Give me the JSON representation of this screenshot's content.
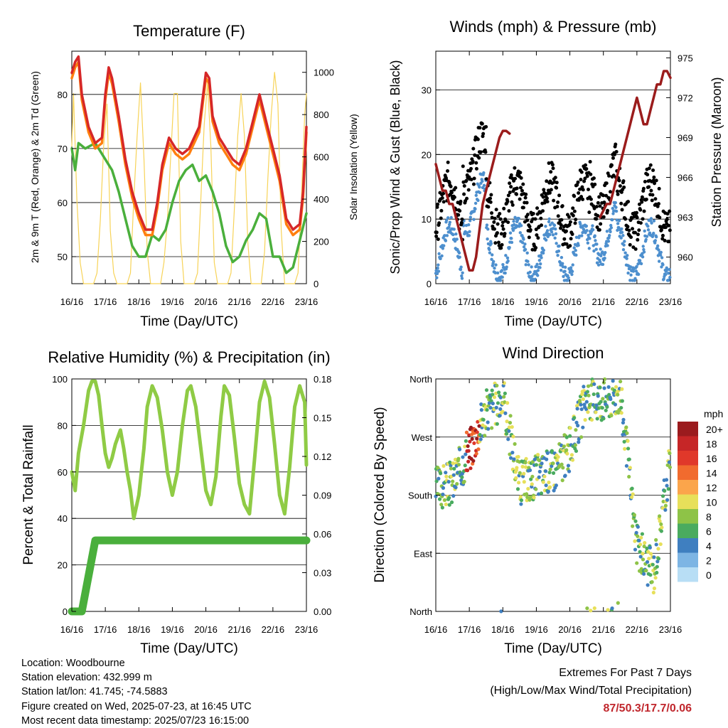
{
  "x_ticks": [
    "16/16",
    "17/16",
    "18/16",
    "19/16",
    "20/16",
    "21/16",
    "22/16",
    "23/16"
  ],
  "info": {
    "location": "Location: Woodbourne",
    "elevation": "Station elevation: 432.999 m",
    "latlon": "Station lat/lon: 41.745; -74.5883",
    "created": "Figure created on Wed, 2025-07-23, at 16:45 UTC",
    "recent": "Most recent data timestamp: 2025/07/23 16:15:00"
  },
  "extremes": {
    "title": "Extremes For Past 7 Days",
    "subtitle": "(High/Low/Max Wind/Total Precipitation)",
    "value": "87/50.3/17.7/0.06",
    "color": "#c0272d"
  },
  "chart_data": [
    {
      "type": "line",
      "title": "Temperature (F)",
      "xlabel": "Time (Day/UTC)",
      "ylabel": "2m & 9m T (Red, Orange) & 2m Td (Green)",
      "ylabel_right": "Solar Insolation (Yellow)",
      "xlim": [
        0,
        7
      ],
      "ylim": [
        45,
        88
      ],
      "yticks": [
        50,
        60,
        70,
        80
      ],
      "ylim_right": [
        0,
        1100
      ],
      "yticks_right": [
        0,
        200,
        400,
        600,
        800,
        1000
      ],
      "series": [
        {
          "color": "#d62728",
          "x": [
            0,
            0.1,
            0.2,
            0.3,
            0.5,
            0.7,
            0.9,
            1.0,
            1.1,
            1.2,
            1.4,
            1.6,
            1.8,
            2.0,
            2.2,
            2.4,
            2.55,
            2.7,
            2.9,
            3.1,
            3.3,
            3.5,
            3.8,
            4.0,
            4.1,
            4.2,
            4.4,
            4.6,
            4.8,
            5.0,
            5.2,
            5.4,
            5.6,
            5.8,
            6.0,
            6.2,
            6.4,
            6.6,
            6.8,
            6.9,
            7.0
          ],
          "values": [
            84,
            86,
            87,
            80,
            74,
            71,
            72,
            80,
            85,
            83,
            76,
            68,
            62,
            58,
            55,
            55,
            60,
            67,
            72,
            70,
            69,
            70,
            74,
            84,
            83,
            76,
            72,
            70,
            68,
            67,
            70,
            75,
            80,
            75,
            70,
            65,
            57,
            55,
            56,
            62,
            74
          ]
        },
        {
          "color": "#ff7f0e",
          "x": [
            0,
            0.1,
            0.2,
            0.3,
            0.5,
            0.7,
            0.9,
            1.0,
            1.1,
            1.2,
            1.4,
            1.6,
            1.8,
            2.0,
            2.2,
            2.4,
            2.55,
            2.7,
            2.9,
            3.1,
            3.3,
            3.5,
            3.8,
            4.0,
            4.1,
            4.2,
            4.4,
            4.6,
            4.8,
            5.0,
            5.2,
            5.4,
            5.6,
            5.8,
            6.0,
            6.2,
            6.4,
            6.6,
            6.8,
            6.9,
            7.0
          ],
          "values": [
            83,
            85,
            86,
            79,
            73,
            70,
            71,
            79,
            84,
            82,
            75,
            67,
            61,
            57,
            54,
            54,
            59,
            66,
            71,
            69,
            68,
            69,
            73,
            83,
            82,
            75,
            71,
            69,
            67,
            66,
            69,
            74,
            79,
            74,
            69,
            64,
            56,
            54,
            55,
            61,
            73
          ]
        },
        {
          "color": "#4aaf3c",
          "x": [
            0,
            0.1,
            0.2,
            0.4,
            0.7,
            1.0,
            1.2,
            1.4,
            1.6,
            1.8,
            2.0,
            2.2,
            2.4,
            2.6,
            2.8,
            3.0,
            3.2,
            3.4,
            3.6,
            3.8,
            4.0,
            4.2,
            4.4,
            4.6,
            4.8,
            5.0,
            5.2,
            5.4,
            5.6,
            5.8,
            6.0,
            6.2,
            6.4,
            6.6,
            6.8,
            7.0
          ],
          "values": [
            70,
            66,
            71,
            70,
            71,
            68,
            66,
            62,
            57,
            52,
            50,
            50,
            54,
            53,
            55,
            60,
            64,
            66,
            67,
            64,
            65,
            62,
            58,
            52,
            49,
            50,
            53,
            55,
            58,
            57,
            50,
            50,
            47,
            48,
            53,
            58
          ]
        }
      ],
      "solar_series": {
        "color": "#f7d358",
        "x": [
          0,
          0.05,
          0.15,
          0.25,
          0.35,
          0.45,
          0.55,
          0.65,
          0.75,
          0.85,
          0.95,
          1.05,
          1.15,
          1.25,
          1.35,
          1.45,
          1.55,
          1.65,
          1.75,
          1.85,
          1.95,
          2.05,
          2.15,
          2.25,
          2.35,
          2.45,
          2.55,
          2.65,
          2.75,
          2.85,
          2.95,
          3.05,
          3.15,
          3.25,
          3.35,
          3.45,
          3.55,
          3.65,
          3.75,
          3.85,
          3.95,
          4.05,
          4.15,
          4.25,
          4.35,
          4.45,
          4.55,
          4.65,
          4.75,
          4.85,
          4.95,
          5.05,
          5.15,
          5.25,
          5.35,
          5.45,
          5.55,
          5.65,
          5.75,
          5.85,
          5.95,
          6.05,
          6.15,
          6.25,
          6.35,
          6.45,
          6.55,
          6.65,
          6.75,
          6.85,
          6.95,
          7.0
        ],
        "values": [
          650,
          900,
          400,
          100,
          0,
          0,
          0,
          0,
          50,
          300,
          650,
          850,
          250,
          50,
          0,
          0,
          0,
          0,
          50,
          400,
          700,
          950,
          600,
          150,
          0,
          0,
          0,
          0,
          100,
          300,
          600,
          900,
          900,
          200,
          0,
          0,
          0,
          0,
          50,
          400,
          750,
          950,
          650,
          100,
          0,
          0,
          0,
          0,
          50,
          350,
          700,
          900,
          700,
          200,
          0,
          0,
          0,
          0,
          150,
          500,
          800,
          1000,
          850,
          250,
          0,
          0,
          0,
          0,
          50,
          400,
          800,
          900
        ]
      }
    },
    {
      "type": "line",
      "title": "Winds (mph) & Pressure (mb)",
      "xlabel": "Time (Day/UTC)",
      "ylabel": "Sonic/Prop Wind & Gust (Blue, Black)",
      "ylabel_right": "Station Pressure (Maroon)",
      "xlim": [
        0,
        7
      ],
      "ylim": [
        0,
        36
      ],
      "yticks": [
        0,
        10,
        20,
        30
      ],
      "ylim_right": [
        958,
        975.5
      ],
      "yticks_right": [
        960,
        963,
        966,
        969,
        972,
        975
      ],
      "series": [
        {
          "color": "#9b1c1c",
          "x": [
            0,
            0.1,
            0.2,
            0.3,
            0.4,
            0.5,
            0.6,
            0.7,
            0.8,
            0.9,
            1.0,
            1.1,
            1.2,
            1.3,
            1.4,
            1.5,
            1.6,
            1.7,
            1.8,
            1.9,
            2.0,
            2.1,
            2.2
          ],
          "values": [
            967,
            966,
            965,
            965,
            964,
            964,
            963,
            962,
            961,
            960,
            959,
            959,
            960,
            962,
            964,
            965,
            966,
            967,
            968,
            969,
            969.5,
            969.5,
            969.3
          ]
        },
        {
          "color": "#9b1c1c",
          "x": [
            4.9,
            5.0,
            5.1,
            5.2,
            5.3,
            5.4,
            5.5,
            5.6,
            5.7,
            5.8,
            5.9,
            6.0,
            6.1,
            6.2,
            6.3,
            6.4,
            6.5,
            6.6,
            6.7,
            6.8,
            6.9,
            7.0
          ],
          "values": [
            963,
            963.5,
            964,
            964,
            965,
            966,
            967,
            968,
            969,
            970,
            971,
            972,
            971,
            970,
            970,
            971,
            972,
            973,
            973,
            974,
            974,
            973.5
          ]
        }
      ]
    },
    {
      "type": "line",
      "title": "Relative Humidity (%) & Precipitation (in)",
      "xlabel": "Time (Day/UTC)",
      "ylabel": "Percent & Total Rainfall",
      "xlim": [
        0,
        7
      ],
      "ylim": [
        0,
        100
      ],
      "yticks": [
        0,
        20,
        40,
        60,
        80,
        100
      ],
      "ylim_right": [
        0,
        0.18
      ],
      "yticks_right": [
        "0.00",
        "0.03",
        "0.06",
        "0.09",
        "0.12",
        "0.15",
        "0.18"
      ],
      "series": [
        {
          "color": "#8fcb45",
          "x": [
            0,
            0.1,
            0.2,
            0.35,
            0.5,
            0.6,
            0.7,
            0.8,
            0.9,
            1.0,
            1.1,
            1.2,
            1.3,
            1.45,
            1.55,
            1.65,
            1.75,
            1.85,
            2.0,
            2.15,
            2.25,
            2.4,
            2.55,
            2.7,
            2.85,
            3.0,
            3.15,
            3.3,
            3.45,
            3.55,
            3.7,
            3.85,
            4.0,
            4.15,
            4.3,
            4.45,
            4.55,
            4.7,
            4.85,
            5.0,
            5.15,
            5.3,
            5.45,
            5.6,
            5.75,
            5.9,
            6.05,
            6.2,
            6.35,
            6.5,
            6.65,
            6.8,
            6.95,
            7.0
          ],
          "values": [
            60,
            52,
            68,
            80,
            95,
            99,
            99,
            93,
            80,
            68,
            62,
            66,
            72,
            78,
            70,
            60,
            52,
            40,
            50,
            70,
            88,
            97,
            92,
            78,
            60,
            50,
            60,
            80,
            95,
            97,
            88,
            70,
            52,
            46,
            58,
            84,
            97,
            93,
            75,
            55,
            46,
            42,
            65,
            90,
            99,
            92,
            72,
            50,
            42,
            62,
            88,
            97,
            90,
            63
          ]
        },
        {
          "color": "#4aaf3c",
          "x": [
            0,
            0.3,
            0.7,
            1.0,
            2.0,
            3.0,
            4.0,
            5.0,
            6.0,
            7.0
          ],
          "values": [
            0,
            0,
            0.055,
            0.055,
            0.055,
            0.055,
            0.055,
            0.055,
            0.055,
            0.055
          ]
        }
      ]
    },
    {
      "type": "scatter",
      "title": "Wind Direction",
      "xlabel": "Time (Day/UTC)",
      "ylabel": "Direction (Colored By Speed)",
      "xlim": [
        0,
        7
      ],
      "yticks": [
        "North",
        "East",
        "South",
        "West",
        "North"
      ],
      "legend_title": "mph",
      "legend_labels": [
        "20+",
        "18",
        "16",
        "14",
        "12",
        "10",
        "8",
        "6",
        "4",
        "2",
        "0"
      ],
      "legend_colors": [
        "#9b1b1e",
        "#c62627",
        "#e0382a",
        "#f16b2e",
        "#fba54b",
        "#e7e05a",
        "#8ec347",
        "#4aab5f",
        "#3f7fc0",
        "#7db5e4",
        "#b8def5"
      ]
    }
  ]
}
